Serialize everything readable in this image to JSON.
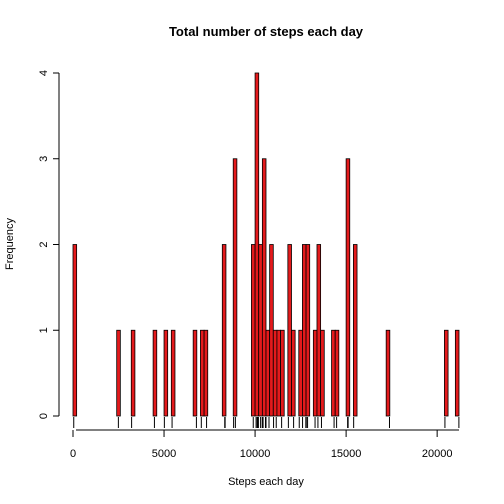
{
  "chart_data": {
    "type": "bar",
    "title": "Total number of steps each day",
    "xlabel": "Steps each day",
    "ylabel": "Frequency",
    "bar_color": "#e41a1c",
    "bin_width": 200,
    "xlim": [
      0,
      21200
    ],
    "ylim": [
      0,
      4
    ],
    "x_ticks": [
      0,
      5000,
      10000,
      15000,
      20000
    ],
    "y_ticks": [
      0,
      1,
      2,
      3,
      4
    ],
    "bins": [
      {
        "start": 0,
        "count": 2
      },
      {
        "start": 2400,
        "count": 1
      },
      {
        "start": 3200,
        "count": 1
      },
      {
        "start": 4400,
        "count": 1
      },
      {
        "start": 5000,
        "count": 1
      },
      {
        "start": 5400,
        "count": 1
      },
      {
        "start": 6600,
        "count": 1
      },
      {
        "start": 7000,
        "count": 1
      },
      {
        "start": 7200,
        "count": 1
      },
      {
        "start": 8200,
        "count": 2
      },
      {
        "start": 8800,
        "count": 3
      },
      {
        "start": 9800,
        "count": 2
      },
      {
        "start": 10000,
        "count": 4
      },
      {
        "start": 10200,
        "count": 2
      },
      {
        "start": 10400,
        "count": 3
      },
      {
        "start": 10600,
        "count": 1
      },
      {
        "start": 10800,
        "count": 2
      },
      {
        "start": 11000,
        "count": 1
      },
      {
        "start": 11200,
        "count": 1
      },
      {
        "start": 11400,
        "count": 1
      },
      {
        "start": 11800,
        "count": 2
      },
      {
        "start": 12000,
        "count": 1
      },
      {
        "start": 12400,
        "count": 1
      },
      {
        "start": 12600,
        "count": 2
      },
      {
        "start": 12800,
        "count": 2
      },
      {
        "start": 13200,
        "count": 1
      },
      {
        "start": 13400,
        "count": 2
      },
      {
        "start": 13600,
        "count": 1
      },
      {
        "start": 14200,
        "count": 1
      },
      {
        "start": 14400,
        "count": 1
      },
      {
        "start": 15000,
        "count": 3
      },
      {
        "start": 15400,
        "count": 2
      },
      {
        "start": 17200,
        "count": 1
      },
      {
        "start": 20400,
        "count": 1
      },
      {
        "start": 21000,
        "count": 1
      }
    ],
    "rug": [
      41,
      2492,
      3219,
      4472,
      5018,
      5441,
      6778,
      7047,
      7336,
      8334,
      8355,
      8821,
      8918,
      9900,
      10056,
      10119,
      10139,
      10183,
      10304,
      10395,
      10439,
      10571,
      10600,
      10765,
      11015,
      11162,
      11458,
      11829,
      12116,
      12426,
      12608,
      12787,
      12811,
      12883,
      13294,
      13452,
      13646,
      14339,
      14478,
      15084,
      15098,
      15110,
      15414,
      17382,
      20427,
      21194
    ]
  }
}
